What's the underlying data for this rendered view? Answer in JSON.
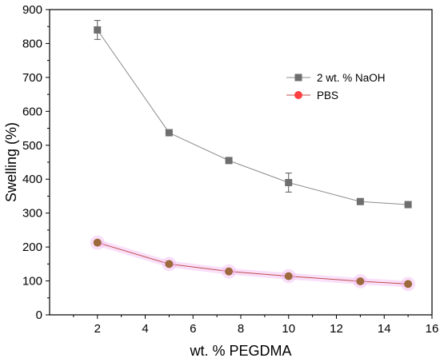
{
  "chart_data": {
    "type": "line",
    "xlabel": "wt. % PEGDMA",
    "ylabel": "Swelling (%)",
    "xlim": [
      0,
      16
    ],
    "ylim": [
      0,
      900
    ],
    "xticks": [
      2,
      4,
      6,
      8,
      10,
      12,
      14,
      16
    ],
    "yticks": [
      0,
      100,
      200,
      300,
      400,
      500,
      600,
      700,
      800,
      900
    ],
    "grid": false,
    "legend_position": "upper-right",
    "series": [
      {
        "name": "2 wt. % NaOH",
        "marker": "square",
        "color": "#6e6e6e",
        "line_color": "#8c8c8c",
        "x": [
          2,
          5,
          7.5,
          10,
          13,
          15
        ],
        "y": [
          840,
          537,
          455,
          390,
          334,
          325
        ],
        "error": [
          28,
          0,
          0,
          28,
          0,
          0
        ]
      },
      {
        "name": "PBS",
        "marker": "circle",
        "color": "#9c6a3c",
        "legend_color": "#ff4040",
        "line_color": "#c0504d",
        "halo_color": "#f2b8f2",
        "x": [
          2,
          5,
          7.5,
          10,
          13,
          15
        ],
        "y": [
          213,
          150,
          128,
          114,
          99,
          91
        ],
        "error": [
          0,
          0,
          0,
          0,
          0,
          0
        ]
      }
    ]
  }
}
